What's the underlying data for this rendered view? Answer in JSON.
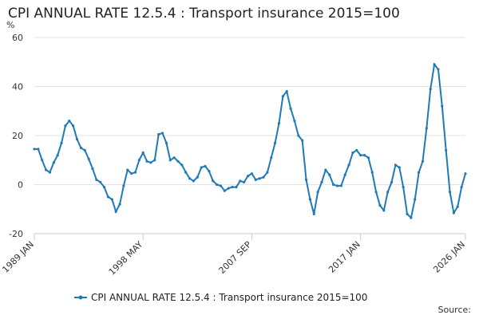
{
  "chart_data": {
    "type": "line",
    "title": "CPI ANNUAL RATE 12.5.4 : Transport insurance 2015=100",
    "y_unit": "%",
    "source": "Source:",
    "x": [
      "1989 JAN",
      "1989 MAY",
      "1989 SEP",
      "1990 JAN",
      "1990 MAY",
      "1990 SEP",
      "1991 JAN",
      "1991 MAY",
      "1991 SEP",
      "1992 JAN",
      "1992 MAY",
      "1992 SEP",
      "1993 JAN",
      "1993 MAY",
      "1993 SEP",
      "1994 JAN",
      "1994 MAY",
      "1994 SEP",
      "1995 JAN",
      "1995 MAY",
      "1995 SEP",
      "1996 JAN",
      "1996 MAY",
      "1996 SEP",
      "1997 JAN",
      "1997 MAY",
      "1997 SEP",
      "1998 JAN",
      "1998 MAY",
      "1998 SEP",
      "1999 JAN",
      "1999 MAY",
      "1999 SEP",
      "2000 JAN",
      "2000 MAY",
      "2000 SEP",
      "2001 JAN",
      "2001 MAY",
      "2001 SEP",
      "2002 JAN",
      "2002 MAY",
      "2002 SEP",
      "2003 JAN",
      "2003 MAY",
      "2003 SEP",
      "2004 JAN",
      "2004 MAY",
      "2004 SEP",
      "2005 JAN",
      "2005 MAY",
      "2005 SEP",
      "2006 JAN",
      "2006 MAY",
      "2006 SEP",
      "2007 JAN",
      "2007 MAY",
      "2007 SEP",
      "2008 JAN",
      "2008 MAY",
      "2008 SEP",
      "2009 JAN",
      "2009 MAY",
      "2009 SEP",
      "2010 JAN",
      "2010 MAY",
      "2010 SEP",
      "2011 JAN",
      "2011 MAY",
      "2011 SEP",
      "2012 JAN",
      "2012 MAY",
      "2012 SEP",
      "2013 JAN",
      "2013 MAY",
      "2013 SEP",
      "2014 JAN",
      "2014 MAY",
      "2014 SEP",
      "2015 JAN",
      "2015 MAY",
      "2015 SEP",
      "2016 JAN",
      "2016 MAY",
      "2016 SEP",
      "2017 JAN",
      "2017 MAY",
      "2017 SEP",
      "2018 JAN",
      "2018 MAY",
      "2018 SEP",
      "2019 JAN",
      "2019 MAY",
      "2019 SEP",
      "2020 JAN",
      "2020 MAY",
      "2020 SEP",
      "2021 JAN",
      "2021 MAY",
      "2021 SEP",
      "2022 JAN",
      "2022 MAY",
      "2022 SEP",
      "2023 JAN",
      "2023 MAY",
      "2023 SEP",
      "2024 JAN",
      "2024 MAY",
      "2024 SEP",
      "2025 JAN",
      "2025 MAY",
      "2025 SEP",
      "2026 JAN"
    ],
    "series": [
      {
        "name": "CPI ANNUAL RATE 12.5.4 : Transport insurance 2015=100",
        "color": "#1f7ab8",
        "values": [
          14.5,
          14.5,
          10,
          6,
          5,
          9,
          12,
          17,
          24,
          26,
          24,
          18.5,
          15,
          14,
          10.5,
          6.5,
          2,
          1,
          -1,
          -5,
          -6,
          -11,
          -8,
          -0.5,
          6,
          4.5,
          5,
          10,
          13,
          9.5,
          9,
          10,
          20.5,
          21,
          17,
          10,
          11,
          9.5,
          8,
          5,
          2.5,
          1.5,
          3,
          7,
          7.5,
          5.5,
          1.5,
          0,
          -0.5,
          -2.5,
          -1.5,
          -1,
          -1,
          1.5,
          1,
          3.5,
          4.5,
          2,
          2.5,
          3,
          5,
          11,
          17,
          25,
          36,
          38,
          31,
          26,
          20,
          18,
          2,
          -6,
          -12,
          -3,
          1,
          6,
          4,
          0,
          -0.5,
          -0.5,
          4,
          8,
          13,
          14,
          12,
          12,
          11,
          5,
          -3,
          -8.5,
          -10.5,
          -3,
          1,
          8,
          7,
          -1,
          -12,
          -13.5,
          -6,
          5,
          9.5,
          23,
          39,
          49,
          47,
          32,
          14,
          -3,
          -11.5,
          -9,
          -1,
          4.5
        ]
      }
    ],
    "ylim": [
      -20,
      60
    ],
    "yticks": [
      -20,
      0,
      20,
      40,
      60
    ],
    "xticks": [
      "1989 JAN",
      "1998 MAY",
      "2007 SEP",
      "2017 JAN",
      "2026 JAN"
    ],
    "grid": true
  }
}
